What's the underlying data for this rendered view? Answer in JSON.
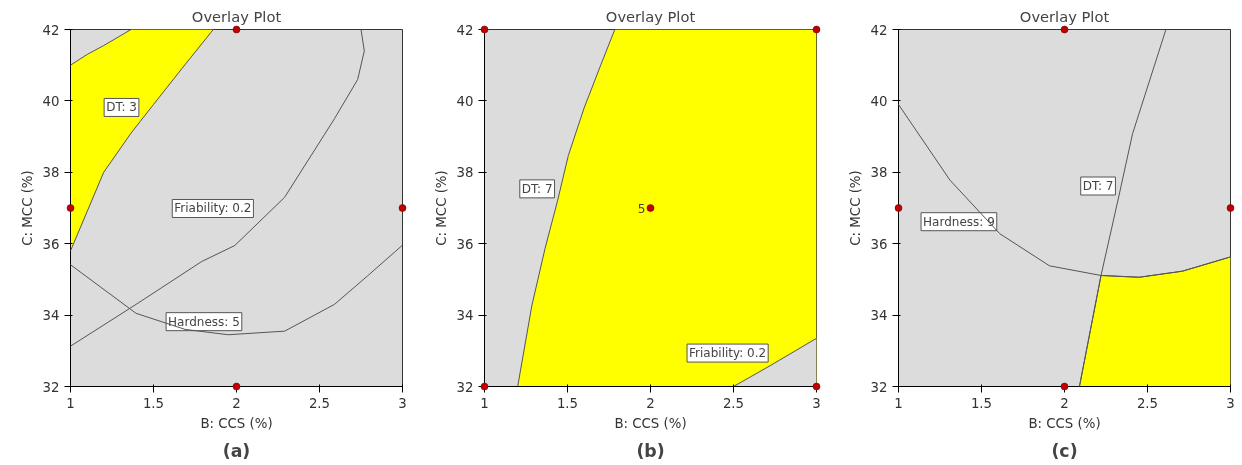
{
  "chart_data": [
    {
      "type": "line",
      "title": "Overlay Plot",
      "xlabel": "B: CCS (%)",
      "ylabel": "C: MCC (%)",
      "xlim": [
        1,
        3
      ],
      "ylim": [
        32,
        42
      ],
      "xticks": [
        1,
        1.5,
        2,
        2.5,
        3
      ],
      "yticks": [
        32,
        34,
        36,
        38,
        40,
        42
      ],
      "grid": false,
      "series": [
        {
          "color": "#555555",
          "x": [
            1,
            1.1,
            1.2,
            1.365,
            1.5,
            1.67,
            1.86
          ],
          "values": [
            35.8,
            36.9,
            38.0,
            39.1,
            39.9,
            40.9,
            42
          ],
          "lower": [
            35.8,
            36.9,
            38.0,
            39.1,
            39.9,
            40.9,
            42
          ],
          "upper": [
            41.0,
            41.3,
            41.55,
            42,
            42,
            42,
            42
          ]
        },
        {
          "color": "#555555",
          "x": [
            1,
            1.1,
            1.2,
            1.365
          ],
          "values": [
            41.0,
            41.3,
            41.55,
            42
          ]
        },
        {
          "color": "#555555",
          "x": [
            1,
            1.395,
            1.79,
            1.99,
            2.29,
            2.59,
            2.73,
            2.77,
            2.75
          ],
          "values": [
            33.13,
            34.3,
            35.5,
            35.95,
            37.3,
            39.5,
            40.6,
            41.4,
            42
          ]
        },
        {
          "color": "#555555",
          "x": [
            1,
            1.395,
            1.69,
            1.95,
            2.29,
            2.59,
            2.79,
            3
          ],
          "values": [
            35.41,
            34.05,
            33.6,
            33.45,
            33.55,
            34.3,
            35.1,
            35.96
          ]
        },
        {
          "type": "scatter",
          "marker": "circle",
          "color": "#c00000",
          "x": [
            1,
            2,
            3,
            2
          ],
          "values": [
            37,
            42,
            37,
            32
          ]
        }
      ],
      "annotations": [
        {
          "text": "DT: 3",
          "x": 1.43,
          "y": 39.48
        },
        {
          "text": "Friability: 0.2",
          "x": 2.12,
          "y": 36.65
        },
        {
          "text": "Hardness: 5",
          "x": 2.05,
          "y": 33.48
        },
        "(a)"
      ]
    },
    {
      "type": "line",
      "title": "Overlay Plot",
      "xlabel": "B: CCS (%)",
      "ylabel": "C: MCC (%)",
      "xlim": [
        1,
        3
      ],
      "ylim": [
        32,
        42
      ],
      "xticks": [
        1,
        1.5,
        2,
        2.5,
        3
      ],
      "yticks": [
        32,
        34,
        36,
        38,
        40,
        42
      ],
      "grid": false,
      "series": [
        {
          "type": "area",
          "color": "#ffff00",
          "x": [
            1.2,
            1.285,
            1.365,
            1.44,
            1.505,
            1.6,
            1.7,
            1.785,
            3
          ],
          "values": [
            32,
            34.26,
            35.87,
            37.2,
            38.47,
            39.8,
            41.0,
            42,
            42
          ]
        },
        {
          "type": "area",
          "color": "#dcdcdc",
          "x": [
            2.5,
            2.727,
            3
          ],
          "values": [
            32,
            32.6,
            33.35
          ]
        },
        {
          "type": "scatter",
          "marker": "circle",
          "color": "#c00000",
          "x": [
            1,
            3,
            1,
            3,
            2
          ],
          "values": [
            42,
            42,
            32,
            32,
            37
          ]
        }
      ],
      "annotations": [
        {
          "text": "DT: 7",
          "x": 1.44,
          "y": 37.2
        },
        {
          "text": "Friability: 0.2",
          "x": 2.727,
          "y": 32.6
        },
        {
          "text": "5",
          "x": 2,
          "y": 37
        },
        "(b)"
      ]
    },
    {
      "type": "line",
      "title": "Overlay Plot",
      "xlabel": "B: CCS (%)",
      "ylabel": "C: MCC (%)",
      "xlim": [
        1,
        3
      ],
      "ylim": [
        32,
        42
      ],
      "xticks": [
        1,
        1.5,
        2,
        2.5,
        3
      ],
      "yticks": [
        32,
        34,
        36,
        38,
        40,
        42
      ],
      "grid": false,
      "series": [
        {
          "type": "area",
          "color": "#ffff00",
          "x": [
            2.09,
            2.22,
            2.45,
            2.71,
            3
          ],
          "values": [
            32,
            35.11,
            35.06,
            35.23,
            35.63
          ]
        },
        {
          "color": "#555555",
          "x": [
            1,
            1.31,
            1.61,
            1.91,
            2.22,
            2.45,
            2.71,
            3
          ],
          "values": [
            39.9,
            37.78,
            36.28,
            35.38,
            35.11,
            35.06,
            35.23,
            35.63
          ]
        },
        {
          "color": "#555555",
          "x": [
            2.09,
            2.22,
            2.325,
            2.41,
            2.611
          ],
          "values": [
            32,
            35.11,
            37.28,
            39.08,
            42
          ]
        },
        {
          "type": "scatter",
          "marker": "circle",
          "color": "#c00000",
          "x": [
            2,
            1,
            2,
            3
          ],
          "values": [
            42,
            37,
            32,
            37
          ]
        }
      ],
      "annotations": [
        {
          "text": "DT: 7",
          "x": 2.325,
          "y": 37.28
        },
        {
          "text": "Hardness: 9",
          "x": 1.61,
          "y": 36.28
        },
        "(c)"
      ]
    }
  ]
}
